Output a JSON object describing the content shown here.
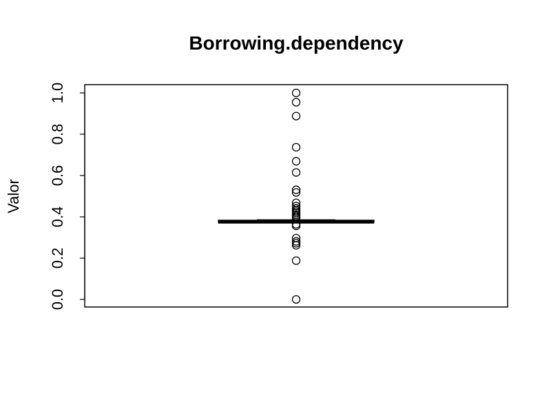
{
  "chart_data": {
    "type": "boxplot",
    "title": "Borrowing.dependency",
    "xlabel": "",
    "ylabel": "Valor",
    "ylim": [
      0.0,
      1.0
    ],
    "yticks": [
      "0.0",
      "0.2",
      "0.4",
      "0.6",
      "0.8",
      "1.0"
    ],
    "grid": false,
    "box": {
      "q1": 0.372,
      "median": 0.375,
      "q3": 0.384,
      "whisker_low": 0.372,
      "whisker_high": 0.386
    },
    "outliers": [
      1.0,
      0.955,
      0.888,
      0.737,
      0.669,
      0.615,
      0.531,
      0.518,
      0.468,
      0.452,
      0.441,
      0.432,
      0.425,
      0.418,
      0.41,
      0.403,
      0.396,
      0.364,
      0.356,
      0.297,
      0.281,
      0.272,
      0.262,
      0.188,
      0.0
    ],
    "colors": {
      "ink": "#000000",
      "background": "#ffffff"
    }
  }
}
